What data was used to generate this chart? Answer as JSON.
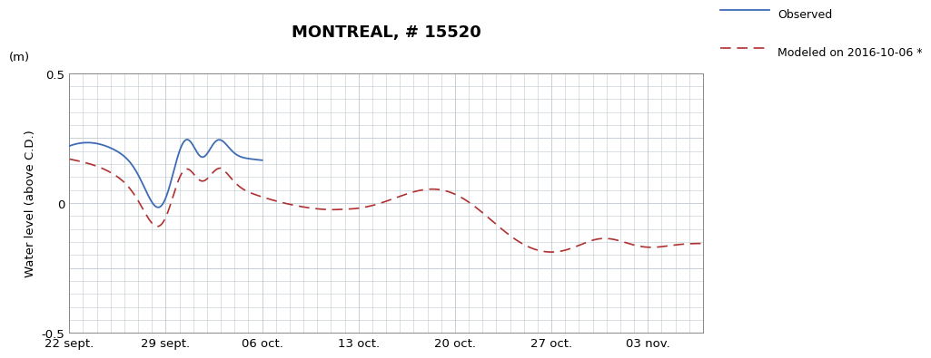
{
  "title": "MONTREAL, # 15520",
  "ylabel_top": "(m)",
  "ylabel_main": "Water level (above C.D.)",
  "xlabel_ticks": [
    "22 sept.",
    "29 sept.",
    "06 oct.",
    "13 oct.",
    "20 oct.",
    "27 oct.",
    "03 nov."
  ],
  "ylim": [
    -0.5,
    0.5
  ],
  "yticks": [
    -0.5,
    -0.25,
    0,
    0.25,
    0.5
  ],
  "ytick_labels": [
    "-0.5",
    "",
    "0",
    "",
    "0.5"
  ],
  "observed_color": "#3d6cb5",
  "modeled_color": "#b03030",
  "legend_observed": "Observed",
  "legend_modeled": "Modeled on 2016-10-06 *",
  "background_color": "#ffffff",
  "grid_color": "#c0c8d0"
}
